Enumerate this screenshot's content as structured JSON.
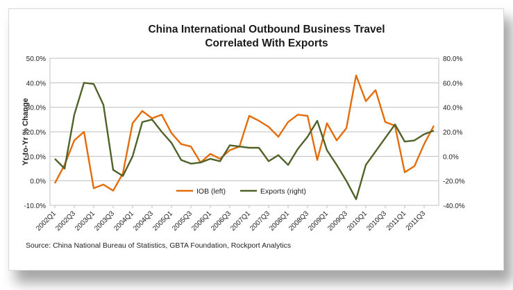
{
  "chart_data": {
    "type": "line",
    "title": [
      "China International Outbound Business Travel",
      "Correlated With Exports"
    ],
    "ylabel_left": "Yr-to-Yr % Change",
    "ylabel_right": "",
    "y_left_range": [
      -10,
      50
    ],
    "y_right_range": [
      -40,
      80
    ],
    "y_left_ticks": [
      "50.0%",
      "40.0%",
      "30.0%",
      "20.0%",
      "10.0%",
      "0.0%",
      "-10.0%"
    ],
    "y_right_ticks": [
      "80.0%",
      "60.0%",
      "40.0%",
      "20.0%",
      "0.0%",
      "-20.0%",
      "-40.0%"
    ],
    "y_left_tick_values": [
      50,
      40,
      30,
      20,
      10,
      0,
      -10
    ],
    "y_right_tick_values": [
      80,
      60,
      40,
      20,
      0,
      -20,
      -40
    ],
    "x": [
      "2002Q1",
      "2002Q2",
      "2002Q3",
      "2002Q4",
      "2003Q1",
      "2003Q2",
      "2003Q3",
      "2003Q4",
      "2004Q1",
      "2004Q2",
      "2004Q3",
      "2004Q4",
      "2005Q1",
      "2005Q2",
      "2005Q3",
      "2005Q4",
      "2006Q1",
      "2006Q2",
      "2006Q3",
      "2006Q4",
      "2007Q1",
      "2007Q2",
      "2007Q3",
      "2007Q4",
      "2008Q1",
      "2008Q2",
      "2008Q3",
      "2008Q4",
      "2009Q1",
      "2009Q2",
      "2009Q3",
      "2009Q4",
      "2010Q1",
      "2010Q2",
      "2010Q3",
      "2010Q4",
      "2011Q1",
      "2011Q2",
      "2011Q3",
      "2011Q4"
    ],
    "x_tick_labels": [
      "2002Q1",
      "2002Q3",
      "2003Q1",
      "2003Q3",
      "2004Q1",
      "2004Q3",
      "2005Q1",
      "2005Q3",
      "2006Q1",
      "2006Q3",
      "2007Q1",
      "2007Q3",
      "2008Q1",
      "2008Q3",
      "2009Q1",
      "2009Q3",
      "2010Q1",
      "2010Q3",
      "2011Q1",
      "2011Q3"
    ],
    "grid": "horizontal",
    "legend_position": "bottom-center",
    "series": [
      {
        "name": "IOB (left)",
        "axis": "left",
        "color": "#E46C0A",
        "values": [
          -1.0,
          6.5,
          16.5,
          20.0,
          -3.0,
          -1.5,
          -4.0,
          3.0,
          23.5,
          28.5,
          25.5,
          27.0,
          19.5,
          15.0,
          14.0,
          7.5,
          11.0,
          9.0,
          12.5,
          14.0,
          26.5,
          24.5,
          22.0,
          18.0,
          24.0,
          27.0,
          26.5,
          8.5,
          23.5,
          16.5,
          21.5,
          43.0,
          32.5,
          37.0,
          24.0,
          22.5,
          3.5,
          6.0,
          15.0,
          22.5
        ]
      },
      {
        "name": "Exports (right)",
        "axis": "right",
        "color": "#4F6228",
        "values": [
          -2.0,
          -10.0,
          34.0,
          60.0,
          59.0,
          42.0,
          -11.0,
          -16.0,
          0.0,
          28.0,
          30.0,
          20.0,
          11.0,
          -3.0,
          -6.0,
          -5.0,
          -2.0,
          -4.0,
          9.0,
          8.0,
          7.0,
          7.0,
          -4.0,
          1.0,
          -7.0,
          6.0,
          16.0,
          29.0,
          5.0,
          -7.0,
          -20.0,
          -35.0,
          -7.0,
          4.0,
          15.0,
          26.0,
          12.0,
          13.0,
          18.0,
          21.0
        ]
      }
    ]
  },
  "source": "Source: China National Bureau of Statistics, GBTA Foundation, Rockport Analytics"
}
